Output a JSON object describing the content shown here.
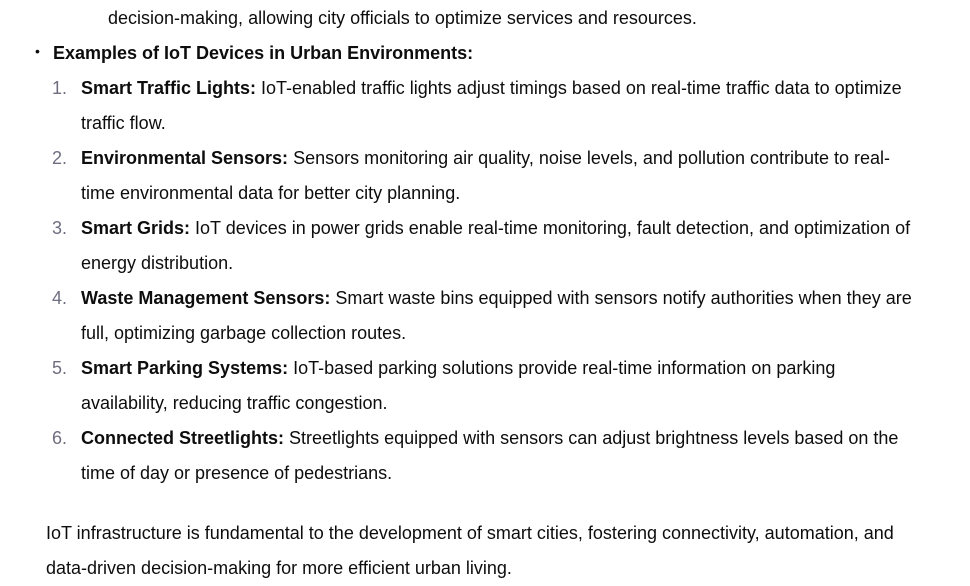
{
  "top_line": "decision-making, allowing city officials to optimize services and resources.",
  "bullet": {
    "marker": "•",
    "heading": "Examples of IoT Devices in Urban Environments:"
  },
  "items": [
    {
      "number": "1.",
      "title": "Smart Traffic Lights:",
      "text": " IoT-enabled traffic lights adjust timings based on real-time traffic data to optimize traffic flow."
    },
    {
      "number": "2.",
      "title": "Environmental Sensors:",
      "text": " Sensors monitoring air quality, noise levels, and pollution contribute to real-time environmental data for better city planning."
    },
    {
      "number": "3.",
      "title": "Smart Grids:",
      "text": " IoT devices in power grids enable real-time monitoring, fault detection, and optimization of energy distribution."
    },
    {
      "number": "4.",
      "title": "Waste Management Sensors:",
      "text": " Smart waste bins equipped with sensors notify authorities when they are full, optimizing garbage collection routes."
    },
    {
      "number": "5.",
      "title": "Smart Parking Systems:",
      "text": " IoT-based parking solutions provide real-time information on parking availability, reducing traffic congestion."
    },
    {
      "number": "6.",
      "title": "Connected Streetlights:",
      "text": " Streetlights equipped with sensors can adjust brightness levels based on the time of day or presence of pedestrians."
    }
  ],
  "closing": "IoT infrastructure is fundamental to the development of smart cities, fostering connectivity, automation, and data-driven decision-making for more efficient urban living."
}
